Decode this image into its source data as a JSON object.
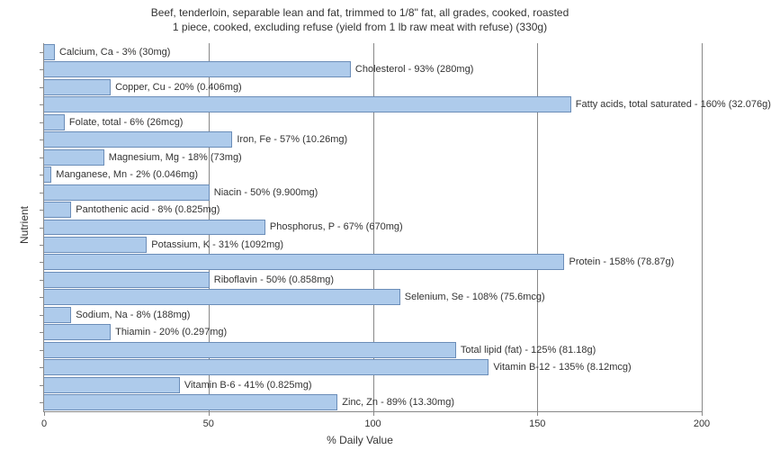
{
  "chart": {
    "type": "bar",
    "title_line1": "Beef, tenderloin, separable lean and fat, trimmed to 1/8\" fat, all grades, cooked, roasted",
    "title_line2": "1 piece, cooked, excluding refuse (yield from 1 lb raw meat with refuse) (330g)",
    "title_fontsize": 12,
    "x_label": "% Daily Value",
    "y_label": "Nutrient",
    "axis_label_fontsize": 12,
    "bar_label_fontsize": 11,
    "tick_fontsize": 11,
    "background_color": "#ffffff",
    "bar_color": "#aecbeb",
    "bar_border_color": "#6b8db8",
    "text_color": "#333333",
    "grid_color": "#888888",
    "xlim": [
      0,
      200
    ],
    "x_ticks": [
      0,
      50,
      100,
      150,
      200
    ],
    "bar_fill_ratio": 0.82,
    "nutrients": [
      {
        "label": "Calcium, Ca - 3% (30mg)",
        "value": 3
      },
      {
        "label": "Cholesterol - 93% (280mg)",
        "value": 93
      },
      {
        "label": "Copper, Cu - 20% (0.406mg)",
        "value": 20
      },
      {
        "label": "Fatty acids, total saturated - 160% (32.076g)",
        "value": 160
      },
      {
        "label": "Folate, total - 6% (26mcg)",
        "value": 6
      },
      {
        "label": "Iron, Fe - 57% (10.26mg)",
        "value": 57
      },
      {
        "label": "Magnesium, Mg - 18% (73mg)",
        "value": 18
      },
      {
        "label": "Manganese, Mn - 2% (0.046mg)",
        "value": 2
      },
      {
        "label": "Niacin - 50% (9.900mg)",
        "value": 50
      },
      {
        "label": "Pantothenic acid - 8% (0.825mg)",
        "value": 8
      },
      {
        "label": "Phosphorus, P - 67% (670mg)",
        "value": 67
      },
      {
        "label": "Potassium, K - 31% (1092mg)",
        "value": 31
      },
      {
        "label": "Protein - 158% (78.87g)",
        "value": 158
      },
      {
        "label": "Riboflavin - 50% (0.858mg)",
        "value": 50
      },
      {
        "label": "Selenium, Se - 108% (75.6mcg)",
        "value": 108
      },
      {
        "label": "Sodium, Na - 8% (188mg)",
        "value": 8
      },
      {
        "label": "Thiamin - 20% (0.297mg)",
        "value": 20
      },
      {
        "label": "Total lipid (fat) - 125% (81.18g)",
        "value": 125
      },
      {
        "label": "Vitamin B-12 - 135% (8.12mcg)",
        "value": 135
      },
      {
        "label": "Vitamin B-6 - 41% (0.825mg)",
        "value": 41
      },
      {
        "label": "Zinc, Zn - 89% (13.30mg)",
        "value": 89
      }
    ]
  }
}
